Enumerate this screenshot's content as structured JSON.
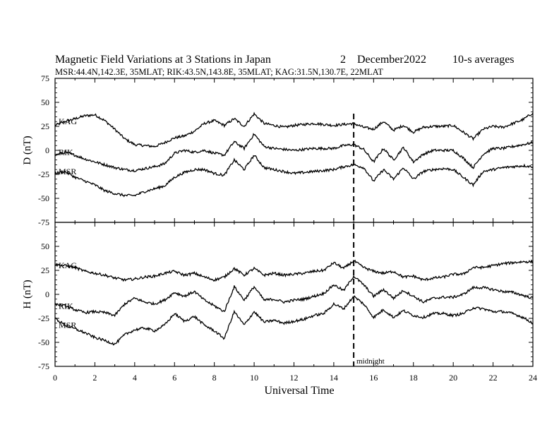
{
  "header": {
    "title": "Magnetic Field Variations at 3 Stations in Japan",
    "day": "2",
    "month": "December",
    "year": "2022",
    "averaging": "10-s averages",
    "stations_line": "MSR:44.4N,142.3E, 35MLAT;  RIK:43.5N,143.8E, 35MLAT;  KAG:31.5N,130.7E, 22MLAT"
  },
  "colors": {
    "axis": "#000000",
    "trace": "#000000",
    "background": "#ffffff"
  },
  "chart_data": [
    {
      "type": "line",
      "ylabel": "D (nT)",
      "ylim": [
        -75,
        75
      ],
      "yticks": [
        75,
        50,
        25,
        0,
        -25,
        -50,
        -75
      ],
      "xlim": [
        0,
        24
      ],
      "series": [
        {
          "name": "KAG",
          "x": [
            0,
            0.5,
            1,
            1.5,
            2,
            2.5,
            3,
            3.5,
            4,
            4.5,
            5,
            5.5,
            6,
            6.5,
            7,
            7.5,
            8,
            8.5,
            9,
            9.5,
            10,
            10.5,
            11,
            11.5,
            12,
            12.5,
            13,
            13.5,
            14,
            14.5,
            15,
            15.5,
            16,
            16.5,
            17,
            17.5,
            18,
            18.5,
            19,
            19.5,
            20,
            20.5,
            21,
            21.5,
            22,
            22.5,
            23,
            23.5,
            24
          ],
          "y": [
            26,
            30,
            33,
            36,
            37,
            31,
            22,
            12,
            6,
            5,
            4,
            8,
            13,
            15,
            20,
            28,
            31,
            26,
            33,
            25,
            38,
            28,
            26,
            24,
            26,
            27,
            28,
            27,
            26,
            27,
            28,
            24,
            22,
            30,
            21,
            26,
            19,
            24,
            25,
            25,
            26,
            19,
            12,
            22,
            25,
            24,
            28,
            32,
            39
          ]
        },
        {
          "name": "RIK",
          "x": [
            0,
            0.5,
            1,
            1.5,
            2,
            2.5,
            3,
            3.5,
            4,
            4.5,
            5,
            5.5,
            6,
            6.5,
            7,
            7.5,
            8,
            8.5,
            9,
            9.5,
            10,
            10.5,
            11,
            11.5,
            12,
            12.5,
            13,
            13.5,
            14,
            14.5,
            15,
            15.5,
            16,
            16.5,
            17,
            17.5,
            18,
            18.5,
            19,
            19.5,
            20,
            20.5,
            21,
            21.5,
            22,
            22.5,
            23,
            23.5,
            24
          ],
          "y": [
            -5,
            -2,
            -5,
            -9,
            -12,
            -15,
            -18,
            -20,
            -21,
            -19,
            -17,
            -14,
            -3,
            0,
            -2,
            0,
            -3,
            -5,
            9,
            2,
            17,
            4,
            2,
            1,
            0,
            1,
            2,
            2,
            2,
            5,
            6,
            1,
            -12,
            2,
            -10,
            3,
            -12,
            -4,
            0,
            0,
            0,
            -8,
            -18,
            -4,
            2,
            2,
            4,
            6,
            8
          ]
        },
        {
          "name": "MSR",
          "x": [
            0,
            0.5,
            1,
            1.5,
            2,
            2.5,
            3,
            3.5,
            4,
            4.5,
            5,
            5.5,
            6,
            6.5,
            7,
            7.5,
            8,
            8.5,
            9,
            9.5,
            10,
            10.5,
            11,
            11.5,
            12,
            12.5,
            13,
            13.5,
            14,
            14.5,
            15,
            15.5,
            16,
            16.5,
            17,
            17.5,
            18,
            18.5,
            19,
            19.5,
            20,
            20.5,
            21,
            21.5,
            22,
            22.5,
            23,
            23.5,
            24
          ],
          "y": [
            -24,
            -22,
            -28,
            -32,
            -36,
            -42,
            -45,
            -47,
            -47,
            -43,
            -40,
            -37,
            -28,
            -23,
            -20,
            -20,
            -24,
            -26,
            -10,
            -20,
            -5,
            -18,
            -20,
            -22,
            -24,
            -23,
            -22,
            -21,
            -20,
            -17,
            -15,
            -18,
            -32,
            -20,
            -30,
            -18,
            -30,
            -22,
            -20,
            -19,
            -20,
            -28,
            -36,
            -22,
            -20,
            -18,
            -17,
            -16,
            -17
          ]
        }
      ]
    },
    {
      "type": "line",
      "ylabel": "H (nT)",
      "xlabel": "Universal Time",
      "ylim": [
        -75,
        75
      ],
      "yticks": [
        50,
        25,
        0,
        -25,
        -50,
        -75
      ],
      "xlim": [
        0,
        24
      ],
      "xticks": [
        0,
        2,
        4,
        6,
        8,
        10,
        12,
        14,
        16,
        18,
        20,
        22,
        24
      ],
      "series": [
        {
          "name": "KAG",
          "x": [
            0,
            0.5,
            1,
            1.5,
            2,
            2.5,
            3,
            3.5,
            4,
            4.5,
            5,
            5.5,
            6,
            6.5,
            7,
            7.5,
            8,
            8.5,
            9,
            9.5,
            10,
            10.5,
            11,
            11.5,
            12,
            12.5,
            13,
            13.5,
            14,
            14.5,
            15,
            15.5,
            16,
            16.5,
            17,
            17.5,
            18,
            18.5,
            19,
            19.5,
            20,
            20.5,
            21,
            21.5,
            22,
            22.5,
            23,
            23.5,
            24
          ],
          "y": [
            31,
            30,
            28,
            24,
            22,
            20,
            17,
            15,
            16,
            18,
            19,
            22,
            24,
            20,
            22,
            18,
            15,
            18,
            27,
            20,
            27,
            20,
            22,
            20,
            21,
            22,
            24,
            25,
            33,
            27,
            35,
            28,
            24,
            22,
            24,
            18,
            19,
            15,
            17,
            18,
            21,
            21,
            28,
            28,
            30,
            32,
            33,
            34,
            34
          ]
        },
        {
          "name": "RIK",
          "x": [
            0,
            0.5,
            1,
            1.5,
            2,
            2.5,
            3,
            3.5,
            4,
            4.5,
            5,
            5.5,
            6,
            6.5,
            7,
            7.5,
            8,
            8.5,
            9,
            9.5,
            10,
            10.5,
            11,
            11.5,
            12,
            12.5,
            13,
            13.5,
            14,
            14.5,
            15,
            15.5,
            16,
            16.5,
            17,
            17.5,
            18,
            18.5,
            19,
            19.5,
            20,
            20.5,
            21,
            21.5,
            22,
            22.5,
            23,
            23.5,
            24
          ],
          "y": [
            -10,
            -12,
            -16,
            -19,
            -18,
            -19,
            -22,
            -10,
            -4,
            -8,
            -10,
            -6,
            2,
            -2,
            3,
            -6,
            -12,
            -18,
            8,
            -6,
            8,
            -6,
            -5,
            -8,
            -6,
            -5,
            -2,
            1,
            10,
            4,
            19,
            10,
            -2,
            5,
            -4,
            4,
            -2,
            -8,
            -4,
            -3,
            -3,
            0,
            7,
            7,
            5,
            3,
            2,
            -1,
            -4
          ]
        },
        {
          "name": "MSR",
          "x": [
            0,
            0.5,
            1,
            1.5,
            2,
            2.5,
            3,
            3.5,
            4,
            4.5,
            5,
            5.5,
            6,
            6.5,
            7,
            7.5,
            8,
            8.5,
            9,
            9.5,
            10,
            10.5,
            11,
            11.5,
            12,
            12.5,
            13,
            13.5,
            14,
            14.5,
            15,
            15.5,
            16,
            16.5,
            17,
            17.5,
            18,
            18.5,
            19,
            19.5,
            20,
            20.5,
            21,
            21.5,
            22,
            22.5,
            23,
            23.5,
            24
          ],
          "y": [
            -25,
            -32,
            -36,
            -40,
            -45,
            -48,
            -52,
            -42,
            -37,
            -35,
            -38,
            -32,
            -20,
            -28,
            -23,
            -32,
            -38,
            -46,
            -18,
            -32,
            -18,
            -29,
            -27,
            -30,
            -28,
            -26,
            -22,
            -20,
            -10,
            -15,
            -2,
            -10,
            -24,
            -16,
            -24,
            -17,
            -22,
            -24,
            -20,
            -20,
            -22,
            -20,
            -14,
            -15,
            -18,
            -18,
            -20,
            -24,
            -30
          ]
        }
      ]
    }
  ],
  "annotation": {
    "marker_time": 15,
    "label": "midnight"
  }
}
